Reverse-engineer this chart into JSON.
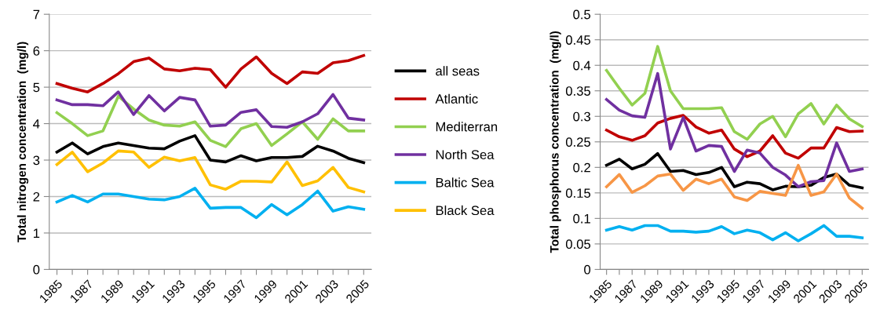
{
  "chart_data": [
    {
      "type": "line",
      "ylabel": "Total nitrogen concentration  (mg/l)",
      "categories": [
        "1985",
        null,
        "1987",
        null,
        "1989",
        null,
        "1991",
        null,
        "1993",
        null,
        "1995",
        null,
        "1997",
        null,
        "1999",
        null,
        "2001",
        null,
        "2003",
        null,
        "2005"
      ],
      "ylim": [
        0,
        7
      ],
      "yticks": [
        0,
        1,
        2,
        3,
        4,
        5,
        6,
        7
      ],
      "grid": "y",
      "legend": "right",
      "marker": "none",
      "line_style": "solid",
      "series": [
        {
          "name": "all seas",
          "color": "#000000",
          "values": [
            3.22,
            3.47,
            3.17,
            3.37,
            3.47,
            3.4,
            3.33,
            3.31,
            3.52,
            3.67,
            3.0,
            2.95,
            3.12,
            2.98,
            3.07,
            3.07,
            3.1,
            3.38,
            3.25,
            3.05,
            2.93
          ]
        },
        {
          "name": "Atlantic",
          "color": "#c00000",
          "values": [
            5.1,
            4.97,
            4.87,
            5.1,
            5.37,
            5.7,
            5.8,
            5.5,
            5.45,
            5.52,
            5.48,
            5.0,
            5.5,
            5.83,
            5.38,
            5.1,
            5.42,
            5.38,
            5.67,
            5.73,
            5.87
          ]
        },
        {
          "name": "Mediterran",
          "color": "#92d050",
          "values": [
            4.3,
            4.0,
            3.67,
            3.8,
            4.75,
            4.4,
            4.1,
            3.96,
            3.93,
            4.05,
            3.54,
            3.37,
            3.86,
            4.0,
            3.4,
            3.72,
            4.05,
            3.57,
            4.13,
            3.8,
            3.8
          ]
        },
        {
          "name": "North Sea",
          "color": "#7030a0",
          "values": [
            4.65,
            4.52,
            4.52,
            4.49,
            4.87,
            4.25,
            4.77,
            4.35,
            4.72,
            4.65,
            3.93,
            3.96,
            4.31,
            4.38,
            3.92,
            3.9,
            4.05,
            4.27,
            4.8,
            4.15,
            4.1
          ]
        },
        {
          "name": "Baltic Sea",
          "color": "#00b0f0",
          "values": [
            1.85,
            2.03,
            1.85,
            2.07,
            2.07,
            2.0,
            1.93,
            1.91,
            2.0,
            2.23,
            1.68,
            1.7,
            1.7,
            1.42,
            1.78,
            1.5,
            1.78,
            2.15,
            1.6,
            1.72,
            1.65
          ]
        },
        {
          "name": "Black Sea",
          "color": "#ffc000",
          "values": [
            2.88,
            3.22,
            2.68,
            2.92,
            3.25,
            3.22,
            2.8,
            3.08,
            2.98,
            3.07,
            2.32,
            2.2,
            2.42,
            2.42,
            2.4,
            2.95,
            2.3,
            2.43,
            2.8,
            2.25,
            2.13
          ]
        }
      ]
    },
    {
      "type": "line",
      "ylabel": "Total phosphorus concentration  (mg/l)",
      "categories": [
        "1985",
        null,
        "1987",
        null,
        "1989",
        null,
        "1991",
        null,
        "1993",
        null,
        "1995",
        null,
        "1997",
        null,
        "1999",
        null,
        "2001",
        null,
        "2003",
        null,
        "2005"
      ],
      "ylim": [
        0,
        0.5
      ],
      "yticks": [
        0,
        0.05,
        0.1,
        0.15,
        0.2,
        0.25,
        0.3,
        0.35,
        0.4,
        0.45,
        0.5
      ],
      "grid": "y",
      "marker": "none",
      "line_style": "solid",
      "series": [
        {
          "color": "#000000",
          "values": [
            0.204,
            0.216,
            0.197,
            0.206,
            0.227,
            0.192,
            0.194,
            0.186,
            0.19,
            0.2,
            0.162,
            0.171,
            0.168,
            0.156,
            0.163,
            0.162,
            0.165,
            0.18,
            0.187,
            0.165,
            0.16
          ]
        },
        {
          "color": "#c00000",
          "values": [
            0.273,
            0.26,
            0.253,
            0.262,
            0.287,
            0.296,
            0.302,
            0.279,
            0.267,
            0.273,
            0.236,
            0.221,
            0.232,
            0.262,
            0.228,
            0.218,
            0.238,
            0.238,
            0.278,
            0.27,
            0.271
          ]
        },
        {
          "color": "#92d050",
          "values": [
            0.39,
            0.355,
            0.322,
            0.345,
            0.437,
            0.35,
            0.315,
            0.315,
            0.315,
            0.317,
            0.27,
            0.255,
            0.285,
            0.3,
            0.26,
            0.305,
            0.325,
            0.285,
            0.322,
            0.295,
            0.28
          ]
        },
        {
          "color": "#7030a0",
          "values": [
            0.333,
            0.312,
            0.301,
            0.298,
            0.384,
            0.236,
            0.298,
            0.232,
            0.243,
            0.241,
            0.192,
            0.234,
            0.228,
            0.2,
            0.185,
            0.162,
            0.172,
            0.174,
            0.248,
            0.192,
            0.197
          ]
        },
        {
          "color": "#00b0f0",
          "values": [
            0.077,
            0.084,
            0.077,
            0.086,
            0.086,
            0.075,
            0.075,
            0.073,
            0.075,
            0.084,
            0.07,
            0.077,
            0.072,
            0.058,
            0.072,
            0.056,
            0.07,
            0.086,
            0.065,
            0.065,
            0.062
          ]
        },
        {
          "color": "#f79646",
          "values": [
            0.162,
            0.186,
            0.151,
            0.164,
            0.183,
            0.187,
            0.155,
            0.177,
            0.168,
            0.177,
            0.142,
            0.135,
            0.153,
            0.149,
            0.145,
            0.204,
            0.145,
            0.152,
            0.187,
            0.14,
            0.12
          ]
        }
      ]
    }
  ]
}
